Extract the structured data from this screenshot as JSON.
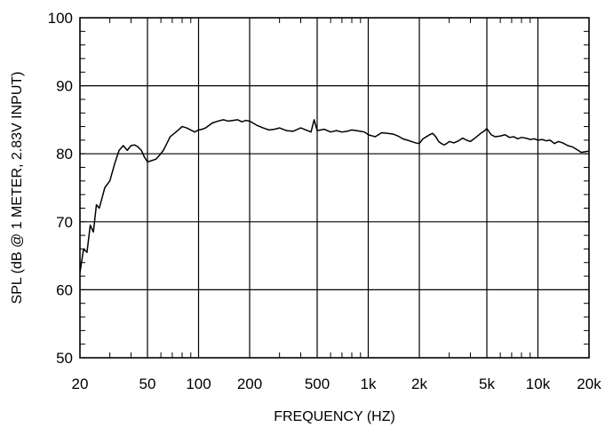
{
  "chart_data": {
    "type": "line",
    "title": "",
    "xlabel": "FREQUENCY  (HZ)",
    "ylabel": "SPL (dB @ 1 METER, 2.83V INPUT)",
    "x_scale": "log",
    "xlim": [
      20,
      20000
    ],
    "ylim": [
      50,
      100
    ],
    "grid": true,
    "x_tick_labels": [
      {
        "value": 20,
        "label": "20"
      },
      {
        "value": 50,
        "label": "50"
      },
      {
        "value": 100,
        "label": "100"
      },
      {
        "value": 200,
        "label": "200"
      },
      {
        "value": 500,
        "label": "500"
      },
      {
        "value": 1000,
        "label": "1k"
      },
      {
        "value": 2000,
        "label": "2k"
      },
      {
        "value": 5000,
        "label": "5k"
      },
      {
        "value": 10000,
        "label": "10k"
      },
      {
        "value": 20000,
        "label": "20k"
      }
    ],
    "y_tick_labels": [
      {
        "value": 50,
        "label": "50"
      },
      {
        "value": 60,
        "label": "60"
      },
      {
        "value": 70,
        "label": "70"
      },
      {
        "value": 80,
        "label": "80"
      },
      {
        "value": 90,
        "label": "90"
      },
      {
        "value": 100,
        "label": "100"
      }
    ],
    "series": [
      {
        "x": [
          20,
          21,
          22,
          23,
          24,
          25,
          26,
          27,
          28,
          30,
          32,
          34,
          36,
          38,
          40,
          42,
          44,
          46,
          48,
          50,
          53,
          56,
          59,
          62,
          65,
          68,
          72,
          76,
          80,
          85,
          90,
          95,
          100,
          105,
          110,
          120,
          130,
          140,
          150,
          160,
          170,
          180,
          190,
          200,
          210,
          220,
          240,
          260,
          280,
          300,
          330,
          360,
          400,
          430,
          460,
          480,
          500,
          550,
          600,
          650,
          700,
          750,
          800,
          850,
          900,
          950,
          1000,
          1100,
          1200,
          1300,
          1400,
          1500,
          1600,
          1700,
          1800,
          1900,
          2000,
          2100,
          2200,
          2300,
          2400,
          2500,
          2600,
          2700,
          2800,
          2900,
          3000,
          3200,
          3400,
          3600,
          3800,
          4000,
          4200,
          4400,
          4600,
          4800,
          5000,
          5300,
          5600,
          6000,
          6400,
          6800,
          7200,
          7600,
          8000,
          8500,
          9000,
          9500,
          10000,
          10600,
          11200,
          11800,
          12500,
          13200,
          14000,
          15000,
          16000,
          17000,
          18000,
          19000,
          20000
        ],
        "y": [
          62.5,
          66,
          65.5,
          69.5,
          68.5,
          72.5,
          72,
          73.5,
          75,
          76,
          78.5,
          80.5,
          81.2,
          80.5,
          81.2,
          81.3,
          81,
          80.5,
          79.5,
          78.8,
          79,
          79.2,
          79.8,
          80.5,
          81.5,
          82.5,
          83,
          83.5,
          84,
          83.8,
          83.5,
          83.2,
          83.5,
          83.6,
          83.8,
          84.5,
          84.8,
          85,
          84.8,
          84.9,
          85,
          84.7,
          84.9,
          84.8,
          84.5,
          84.2,
          83.8,
          83.5,
          83.6,
          83.8,
          83.4,
          83.3,
          83.8,
          83.5,
          83.2,
          85,
          83.4,
          83.6,
          83.2,
          83.4,
          83.2,
          83.3,
          83.5,
          83.4,
          83.3,
          83.2,
          82.8,
          82.5,
          83.1,
          83,
          82.9,
          82.6,
          82.2,
          82,
          81.8,
          81.6,
          81.5,
          82.2,
          82.5,
          82.8,
          83,
          82.5,
          81.8,
          81.5,
          81.3,
          81.5,
          81.8,
          81.6,
          81.9,
          82.3,
          82,
          81.8,
          82.2,
          82.6,
          83,
          83.3,
          83.7,
          82.8,
          82.5,
          82.6,
          82.8,
          82.4,
          82.5,
          82.2,
          82.4,
          82.3,
          82.1,
          82.2,
          82,
          82.1,
          81.9,
          82,
          81.5,
          81.8,
          81.6,
          81.2,
          81,
          80.6,
          80.2,
          80.3,
          80.4
        ]
      }
    ]
  }
}
